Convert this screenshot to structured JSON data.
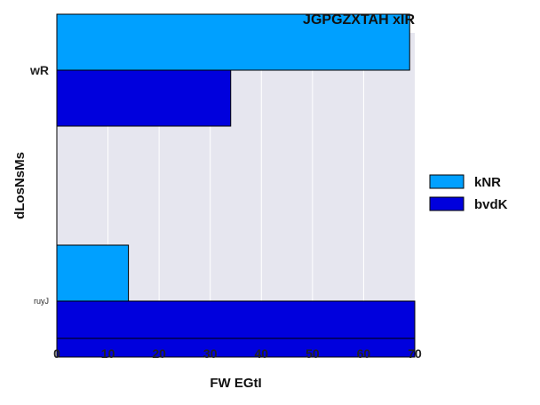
{
  "chart_data": {
    "type": "bar",
    "orientation": "horizontal",
    "title": "JGPGZXTAH xIR",
    "xlabel": "FW EGtI",
    "ylabel": "dLosNsMs",
    "categories": [
      "wR",
      "ruyJ"
    ],
    "category_label_sizes": [
      "normal",
      "small"
    ],
    "series": [
      {
        "name": "kNR",
        "color": "#00a0ff",
        "values": [
          69,
          14
        ]
      },
      {
        "name": "bvdK",
        "color": "#0000dd",
        "values": [
          34,
          70
        ]
      }
    ],
    "xlim": [
      0,
      70
    ],
    "xticks": [
      0,
      10,
      20,
      30,
      40,
      50,
      60,
      70
    ],
    "grid": "x",
    "legend_position": "right",
    "plot_background": "#e6e6ef"
  }
}
